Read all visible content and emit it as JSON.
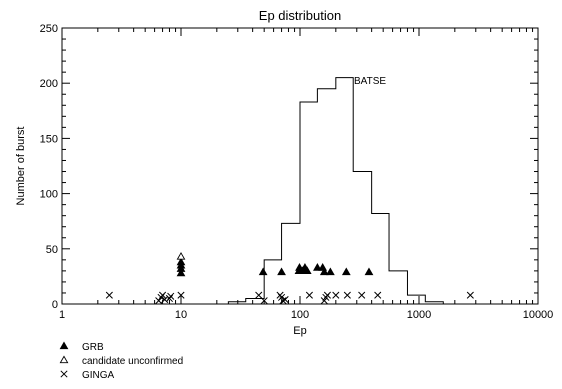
{
  "chart_data": {
    "type": "histogram+scatter",
    "title": "Ep distribution",
    "xlabel": "Ep",
    "ylabel": "Number of burst",
    "xscale": "log",
    "xlim": [
      1,
      10000
    ],
    "ylim": [
      0,
      250
    ],
    "xticks": [
      1,
      10,
      100,
      1000,
      10000
    ],
    "xtick_labels": [
      "1",
      "10",
      "100",
      "1000",
      "10000"
    ],
    "yticks": [
      0,
      50,
      100,
      150,
      200,
      250
    ],
    "ytick_labels": [
      "0",
      "50",
      "100",
      "150",
      "200",
      "250"
    ],
    "grid": false,
    "annotation": "BATSE",
    "legend_position": "bottom-left, below plot",
    "histogram": {
      "name": "BATSE",
      "bin_edges": [
        25,
        35,
        50,
        70,
        100,
        140,
        200,
        280,
        400,
        560,
        800,
        1130,
        1600,
        2260
      ],
      "counts": [
        2,
        5,
        40,
        73,
        183,
        195,
        205,
        120,
        82,
        30,
        8,
        2,
        0
      ]
    },
    "series": [
      {
        "name": "GRB",
        "marker": "filled-triangle",
        "points": [
          [
            10,
            28
          ],
          [
            10,
            32
          ],
          [
            10,
            35
          ],
          [
            10,
            38
          ],
          [
            49,
            29
          ],
          [
            70,
            29
          ],
          [
            98,
            30
          ],
          [
            99,
            33
          ],
          [
            105,
            30
          ],
          [
            110,
            33
          ],
          [
            115,
            30
          ],
          [
            140,
            33
          ],
          [
            155,
            33
          ],
          [
            160,
            29
          ],
          [
            180,
            29
          ],
          [
            245,
            29
          ],
          [
            380,
            29
          ]
        ]
      },
      {
        "name": "candidate unconfirmed",
        "marker": "open-triangle",
        "points": [
          [
            10,
            43
          ]
        ]
      },
      {
        "name": "GINGA",
        "marker": "cross",
        "points": [
          [
            2.5,
            8
          ],
          [
            6.5,
            3
          ],
          [
            6.8,
            6
          ],
          [
            7,
            8
          ],
          [
            7.3,
            4
          ],
          [
            8,
            5
          ],
          [
            8.2,
            7
          ],
          [
            10,
            8
          ],
          [
            45,
            8
          ],
          [
            50,
            3
          ],
          [
            68,
            8
          ],
          [
            70,
            6
          ],
          [
            72,
            3
          ],
          [
            75,
            4
          ],
          [
            120,
            8
          ],
          [
            160,
            3
          ],
          [
            165,
            6
          ],
          [
            170,
            8
          ],
          [
            200,
            8
          ],
          [
            250,
            8
          ],
          [
            330,
            8
          ],
          [
            450,
            8
          ],
          [
            2700,
            8
          ]
        ]
      }
    ]
  }
}
